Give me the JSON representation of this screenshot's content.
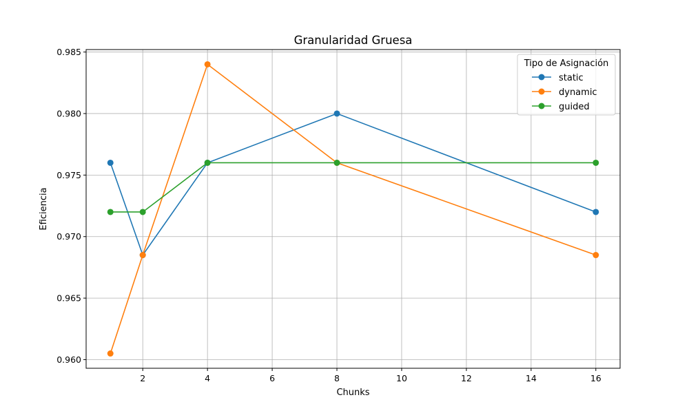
{
  "chart_data": {
    "type": "line",
    "title": "Granularidad Gruesa",
    "xlabel": "Chunks",
    "ylabel": "Eficiencia",
    "x": [
      1,
      2,
      4,
      8,
      16
    ],
    "xlim": [
      0.25,
      16.75
    ],
    "ylim": [
      0.9593,
      0.9852
    ],
    "xticks": [
      2,
      4,
      6,
      8,
      10,
      12,
      14,
      16
    ],
    "yticks": [
      0.96,
      0.965,
      0.97,
      0.975,
      0.98,
      0.985
    ],
    "xtick_labels": [
      "2",
      "4",
      "6",
      "8",
      "10",
      "12",
      "14",
      "16"
    ],
    "ytick_labels": [
      "0.960",
      "0.965",
      "0.970",
      "0.975",
      "0.980",
      "0.985"
    ],
    "grid": true,
    "legend": {
      "title": "Tipo de Asignación",
      "placement": "top-right"
    },
    "series": [
      {
        "name": "static",
        "color": "#1f77b4",
        "values": [
          0.976,
          0.9685,
          0.976,
          0.98,
          0.972
        ]
      },
      {
        "name": "dynamic",
        "color": "#ff7f0e",
        "values": [
          0.9605,
          0.9685,
          0.984,
          0.976,
          0.9685
        ]
      },
      {
        "name": "guided",
        "color": "#2ca02c",
        "values": [
          0.972,
          0.972,
          0.976,
          0.976,
          0.976
        ]
      }
    ]
  }
}
